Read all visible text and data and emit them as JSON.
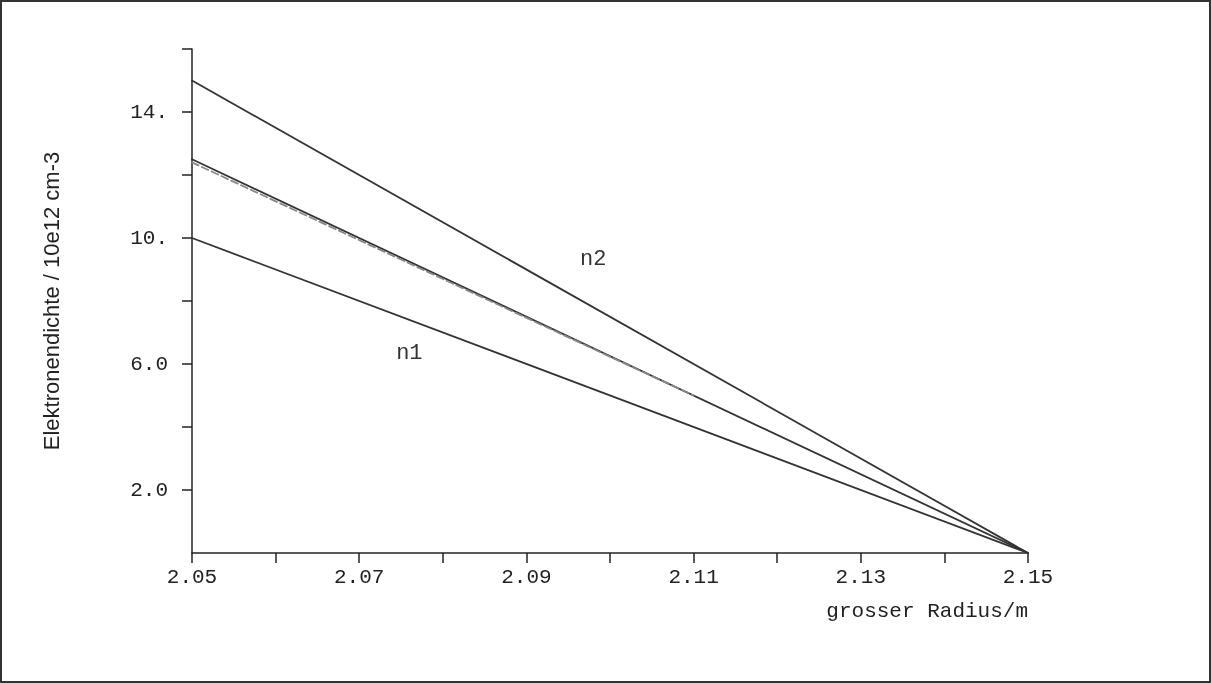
{
  "chart_data": {
    "type": "line",
    "xlabel": "grosser Radius/m",
    "ylabel": "Elektronendichte / 10e12 cm-3",
    "xlim": [
      2.05,
      2.15
    ],
    "ylim": [
      0,
      16
    ],
    "xticks": [
      {
        "value": 2.05,
        "label": "2.05"
      },
      {
        "value": 2.06,
        "label": null
      },
      {
        "value": 2.07,
        "label": "2.07"
      },
      {
        "value": 2.08,
        "label": null
      },
      {
        "value": 2.09,
        "label": "2.09"
      },
      {
        "value": 2.1,
        "label": null
      },
      {
        "value": 2.11,
        "label": "2.11"
      },
      {
        "value": 2.12,
        "label": null
      },
      {
        "value": 2.13,
        "label": "2.13"
      },
      {
        "value": 2.14,
        "label": null
      },
      {
        "value": 2.15,
        "label": "2.15"
      }
    ],
    "yticks": [
      {
        "value": 2,
        "label": "2.0"
      },
      {
        "value": 4,
        "label": null
      },
      {
        "value": 6,
        "label": "6.0"
      },
      {
        "value": 8,
        "label": null
      },
      {
        "value": 10,
        "label": "10."
      },
      {
        "value": 12,
        "label": null
      },
      {
        "value": 14,
        "label": "14."
      },
      {
        "value": 16,
        "label": null
      }
    ],
    "grid": false,
    "marker": "none",
    "series": [
      {
        "name": "n2",
        "color": "#333333",
        "x": [
          2.05,
          2.15
        ],
        "values": [
          15,
          0
        ]
      },
      {
        "color": "#333333",
        "x": [
          2.05,
          2.15
        ],
        "values": [
          12.5,
          0
        ]
      },
      {
        "color": "#888888",
        "line_style": "dashed",
        "x": [
          2.05,
          2.11
        ],
        "values": [
          12.4,
          5.0
        ]
      },
      {
        "name": "n1",
        "color": "#333333",
        "x": [
          2.05,
          2.15
        ],
        "values": [
          10,
          0
        ]
      }
    ]
  }
}
